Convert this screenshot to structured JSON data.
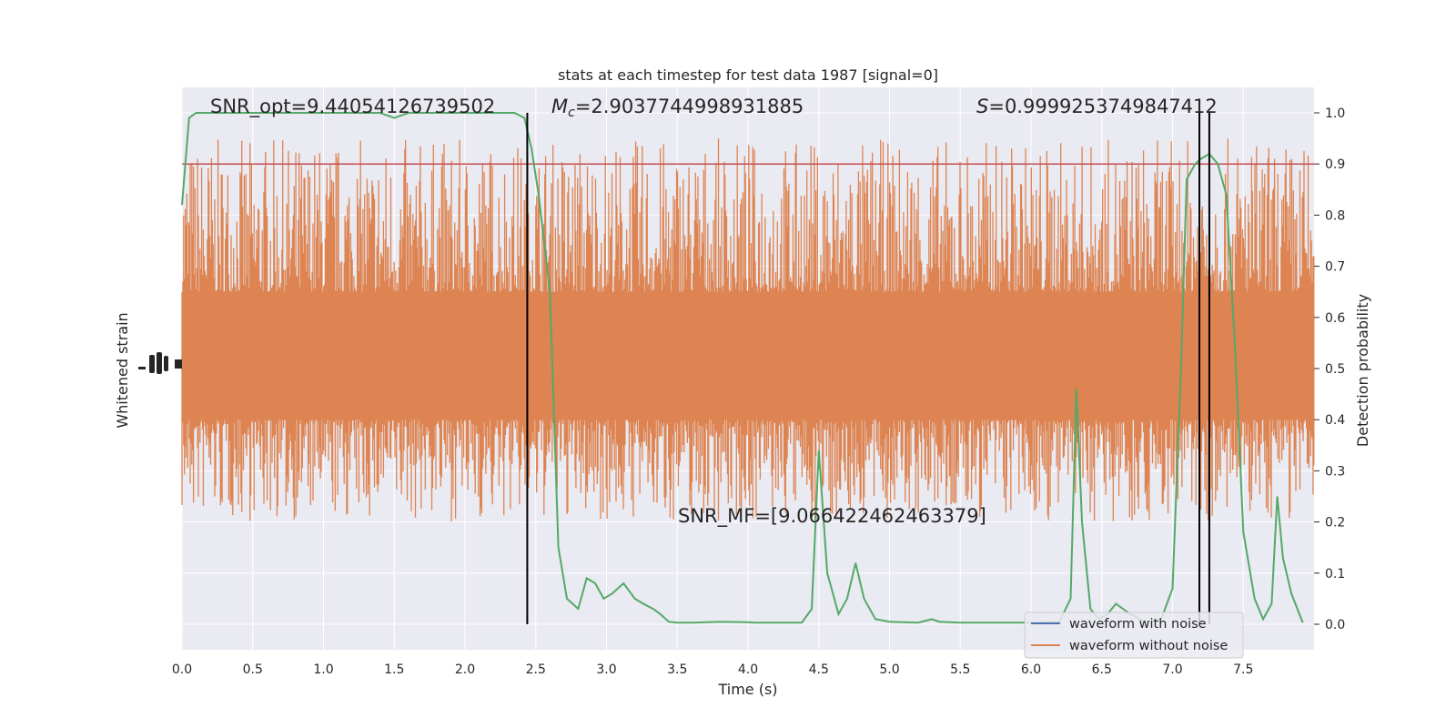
{
  "chart_data": {
    "type": "line",
    "title": "stats at each timestep for test data 1987 [signal=0]",
    "xlabel": "Time (s)",
    "ylabel_left": "Whitened strain",
    "ylabel_right": "Detection probability",
    "xlim": [
      0.0,
      8.0
    ],
    "ylim_right": [
      -0.05,
      1.05
    ],
    "x_ticks": [
      "0.0",
      "0.5",
      "1.0",
      "1.5",
      "2.0",
      "2.5",
      "3.0",
      "3.5",
      "4.0",
      "4.5",
      "5.0",
      "5.5",
      "6.0",
      "6.5",
      "7.0",
      "7.5"
    ],
    "x_tick_values": [
      0.0,
      0.5,
      1.0,
      1.5,
      2.0,
      2.5,
      3.0,
      3.5,
      4.0,
      4.5,
      5.0,
      5.5,
      6.0,
      6.5,
      7.0,
      7.5
    ],
    "y_ticks_right": [
      "0.0",
      "0.1",
      "0.2",
      "0.3",
      "0.4",
      "0.5",
      "0.6",
      "0.7",
      "0.8",
      "0.9",
      "1.0"
    ],
    "y_tick_values_right": [
      0.0,
      0.1,
      0.2,
      0.3,
      0.4,
      0.5,
      0.6,
      0.7,
      0.8,
      0.9,
      1.0
    ],
    "grid": true,
    "legend_position": "lower-right",
    "annotations": {
      "snr_opt": "SNR_opt=9.44054126739502",
      "mc_symbol": "M",
      "mc_sub": "c",
      "mc_value": "=2.9037744998931885",
      "s_symbol": "S",
      "s_value": "=0.9999253749847412",
      "snr_mf": "SNR_MF=[9.066422462463379]"
    },
    "threshold": 0.9,
    "vlines_x": [
      2.44,
      7.19,
      7.26
    ],
    "series": [
      {
        "name": "waveform with noise",
        "color": "#4c72b0"
      },
      {
        "name": "waveform without noise",
        "color": "#dd8452",
        "band_low": 0.4,
        "band_high": 0.65,
        "envelope_low": 0.2,
        "envelope_high": 0.95
      },
      {
        "color": "#55a868",
        "x": [
          0.0,
          0.05,
          0.1,
          0.2,
          0.5,
          1.0,
          1.4,
          1.5,
          1.6,
          2.0,
          2.35,
          2.42,
          2.47,
          2.52,
          2.6,
          2.66,
          2.72,
          2.8,
          2.86,
          2.92,
          2.98,
          3.04,
          3.12,
          3.2,
          3.26,
          3.33,
          3.38,
          3.44,
          3.5,
          3.6,
          3.8,
          4.0,
          4.05,
          4.2,
          4.38,
          4.45,
          4.5,
          4.56,
          4.64,
          4.7,
          4.76,
          4.82,
          4.9,
          5.0,
          5.2,
          5.3,
          5.35,
          5.5,
          6.0,
          6.2,
          6.28,
          6.32,
          6.36,
          6.42,
          6.48,
          6.54,
          6.6,
          6.7,
          6.8,
          6.92,
          7.0,
          7.06,
          7.1,
          7.16,
          7.2,
          7.26,
          7.32,
          7.38,
          7.44,
          7.5,
          7.58,
          7.64,
          7.7,
          7.74,
          7.78,
          7.84,
          7.92
        ],
        "y": [
          0.82,
          0.99,
          1.0,
          1.0,
          1.0,
          1.0,
          1.0,
          0.99,
          1.0,
          1.0,
          1.0,
          0.99,
          0.93,
          0.84,
          0.65,
          0.15,
          0.05,
          0.03,
          0.09,
          0.08,
          0.05,
          0.06,
          0.08,
          0.05,
          0.04,
          0.03,
          0.02,
          0.005,
          0.003,
          0.003,
          0.005,
          0.004,
          0.003,
          0.003,
          0.003,
          0.03,
          0.34,
          0.1,
          0.02,
          0.05,
          0.12,
          0.05,
          0.01,
          0.005,
          0.003,
          0.01,
          0.005,
          0.003,
          0.003,
          0.005,
          0.05,
          0.46,
          0.2,
          0.03,
          0.01,
          0.02,
          0.04,
          0.02,
          0.005,
          0.01,
          0.07,
          0.5,
          0.87,
          0.9,
          0.91,
          0.92,
          0.9,
          0.84,
          0.55,
          0.18,
          0.05,
          0.01,
          0.04,
          0.25,
          0.13,
          0.06,
          0.003
        ]
      }
    ]
  }
}
